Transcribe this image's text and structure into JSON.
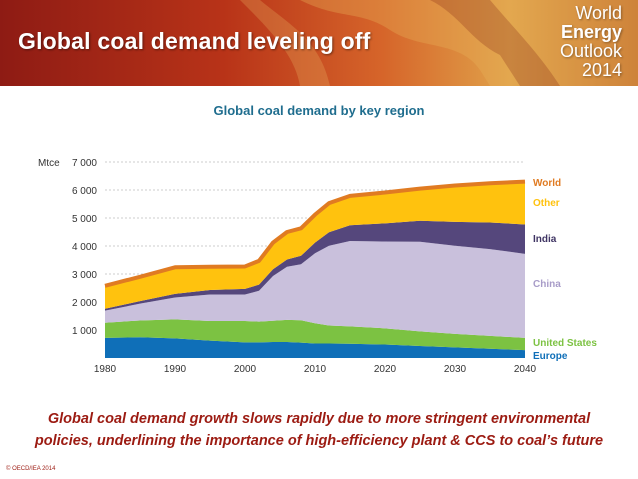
{
  "header": {
    "title": "Global coal demand leveling off",
    "brand_line1": "World",
    "brand_line2": "Energy",
    "brand_line3": "Outlook",
    "brand_line4": "2014"
  },
  "chart_data": {
    "type": "area",
    "stacked": true,
    "title": "Global coal demand by key region",
    "ylabel": "Mtce",
    "xlim": [
      1980,
      2040
    ],
    "ylim": [
      0,
      7000
    ],
    "x_ticks": [
      "1980",
      "1990",
      "2000",
      "2010",
      "2020",
      "2030",
      "2040"
    ],
    "y_ticks": [
      "1 000",
      "2 000",
      "3 000",
      "4 000",
      "5 000",
      "6 000",
      "7 000"
    ],
    "grid": true,
    "x": [
      1980,
      1985,
      1990,
      1995,
      2000,
      2002,
      2004,
      2006,
      2008,
      2010,
      2012,
      2015,
      2020,
      2025,
      2030,
      2035,
      2040
    ],
    "series": [
      {
        "name": "Europe",
        "color": "#0f6fb8",
        "values": [
          720,
          740,
          700,
          620,
          560,
          560,
          570,
          570,
          550,
          520,
          520,
          510,
          480,
          430,
          380,
          330,
          280
        ]
      },
      {
        "name": "United States",
        "color": "#7cc242",
        "values": [
          540,
          600,
          680,
          700,
          760,
          740,
          760,
          790,
          800,
          720,
          640,
          620,
          580,
          520,
          480,
          460,
          440
        ]
      },
      {
        "name": "China",
        "color": "#c9c0dc",
        "values": [
          430,
          600,
          780,
          950,
          950,
          1100,
          1600,
          1900,
          2000,
          2500,
          2850,
          3050,
          3100,
          3200,
          3150,
          3100,
          3000
        ]
      },
      {
        "name": "India",
        "color": "#55477c",
        "values": [
          70,
          90,
          130,
          160,
          200,
          220,
          240,
          260,
          300,
          380,
          480,
          560,
          650,
          750,
          850,
          950,
          1050
        ]
      },
      {
        "name": "Other",
        "color": "#ffc20e",
        "values": [
          820,
          870,
          950,
          830,
          800,
          850,
          950,
          980,
          980,
          1000,
          1040,
          1050,
          1100,
          1150,
          1300,
          1400,
          1530
        ]
      }
    ],
    "world_line": {
      "name": "World",
      "color": "#e07b22",
      "values": [
        2580,
        2900,
        3240,
        3260,
        3270,
        3470,
        4120,
        4500,
        4630,
        5120,
        5530,
        5790,
        5910,
        6050,
        6160,
        6240,
        6300
      ]
    }
  },
  "caption": {
    "line1": "Global coal demand growth slows rapidly due to more stringent environmental",
    "line2": "policies, underlining the importance of high-efficiency plant & CCS to coal’s future"
  },
  "copyright": "© OECD/IEA 2014"
}
